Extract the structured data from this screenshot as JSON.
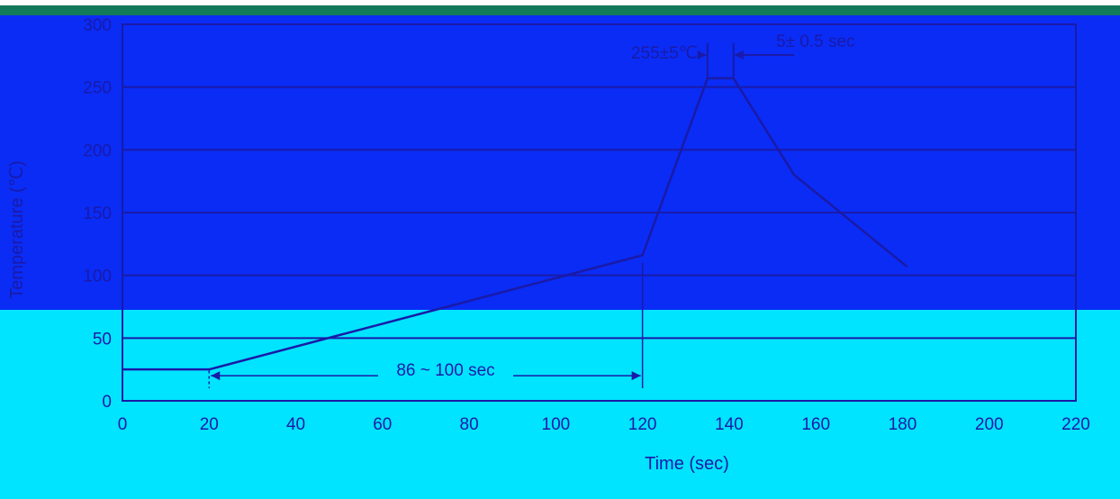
{
  "chart_data": {
    "type": "line",
    "title": "",
    "xlabel": "Time  (sec)",
    "ylabel": "Temperature (℃)",
    "xlim": [
      0,
      220
    ],
    "ylim": [
      0,
      300
    ],
    "x_ticks": [
      0,
      20,
      40,
      60,
      80,
      100,
      120,
      140,
      160,
      180,
      200,
      220
    ],
    "y_ticks": [
      0,
      50,
      100,
      150,
      200,
      250,
      300
    ],
    "y_tick_labels": [
      "0",
      "50",
      "100",
      "150",
      "200",
      "250",
      "300"
    ],
    "grid": "horizontal",
    "series": [
      {
        "points": [
          {
            "x": 0,
            "y": 25
          },
          {
            "x": 20,
            "y": 25
          },
          {
            "x": 120,
            "y": 116
          },
          {
            "x": 135,
            "y": 257
          },
          {
            "x": 141,
            "y": 257
          },
          {
            "x": 155,
            "y": 180
          },
          {
            "x": 181,
            "y": 107
          }
        ]
      }
    ],
    "annotations": [
      {
        "id": "dwell",
        "text": "86 ~ 100 sec",
        "x_start": 20,
        "x_end": 120,
        "y": 20
      },
      {
        "id": "peak-temp",
        "text": "255±5℃"
      },
      {
        "id": "peak-time",
        "text": "5± 0.5 sec"
      }
    ]
  },
  "colors": {
    "background_top": "#0a2cf5",
    "background_bottom": "#00e4ff",
    "top_strip": "#137a5a",
    "ink": "#1a1aa8"
  }
}
